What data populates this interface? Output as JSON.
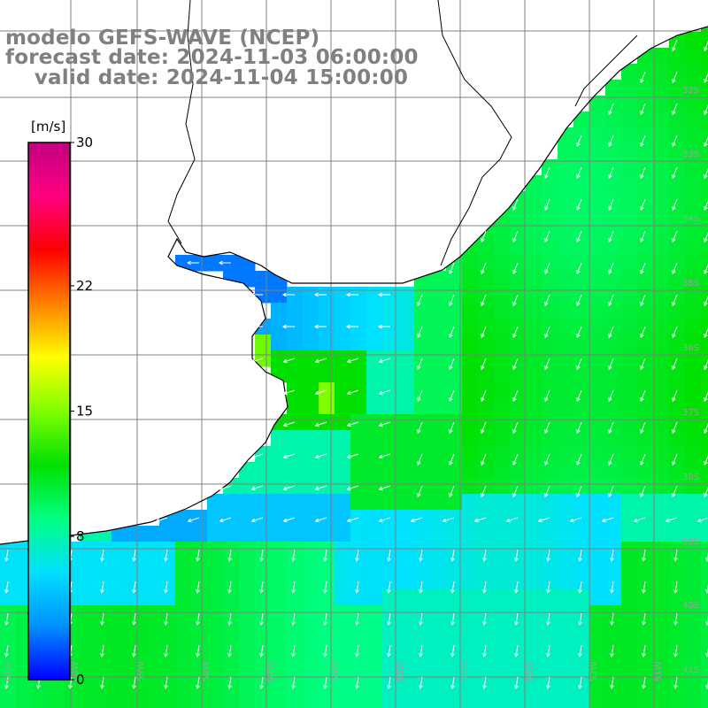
{
  "header": {
    "title": "modelo GEFS-WAVE (NCEP)",
    "forecast": "forecast date: 2024-11-03 06:00:00",
    "valid": "    valid date: 2024-11-04 15:00:00"
  },
  "colorbar": {
    "unit": "[m/s]",
    "min": 0,
    "max": 30,
    "tick_labels": [
      "30",
      "22",
      "15",
      "8",
      "0"
    ],
    "tick_values": [
      30,
      22,
      15,
      8,
      0
    ],
    "colors": [
      "#0000ff",
      "#0090ff",
      "#00e0ff",
      "#00ff80",
      "#00e000",
      "#80ff00",
      "#ffff00",
      "#ff8000",
      "#ff0000",
      "#ff0080",
      "#c00080"
    ]
  },
  "map": {
    "lat_labels": [
      "32S",
      "33S",
      "34S",
      "35S",
      "36S",
      "37S",
      "38S",
      "39S",
      "40S",
      "41S"
    ],
    "lon_labels": [
      "61W",
      "60W",
      "59W",
      "58W",
      "57W",
      "56W",
      "55W",
      "54W",
      "53W",
      "52W",
      "51W"
    ],
    "land_color": "#ffffff",
    "coast_color": "#000000",
    "grid_color": "#808080"
  }
}
